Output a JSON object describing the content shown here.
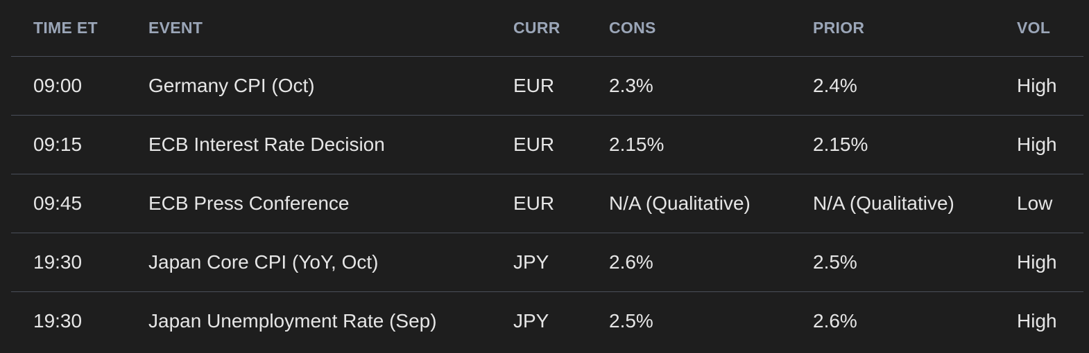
{
  "table": {
    "header": [
      "TIME ET",
      "EVENT",
      "CURR",
      "CONS",
      "PRIOR",
      "VOL"
    ],
    "rows": [
      [
        "09:00",
        "Germany CPI (Oct)",
        "EUR",
        "2.3%",
        "2.4%",
        "High"
      ],
      [
        "09:15",
        "ECB Interest Rate Decision",
        "EUR",
        "2.15%",
        "2.15%",
        "High"
      ],
      [
        "09:45",
        "ECB Press Conference",
        "EUR",
        "N/A (Qualitative)",
        "N/A (Qualitative)",
        "Low"
      ],
      [
        "19:30",
        "Japan Core CPI (YoY, Oct)",
        "JPY",
        "2.6%",
        "2.5%",
        "High"
      ],
      [
        "19:30",
        "Japan Unemployment Rate (Sep)",
        "JPY",
        "2.5%",
        "2.6%",
        "High"
      ]
    ]
  }
}
